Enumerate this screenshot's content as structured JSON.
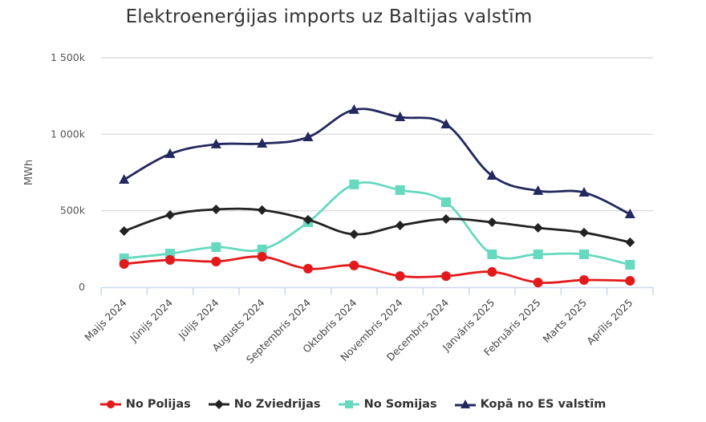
{
  "title": "Elektroenerģijas imports uz Baltijas valstīm",
  "chart_data": {
    "type": "line",
    "title": "Elektroenerģijas imports uz Baltijas valstīm",
    "xlabel": "",
    "ylabel": "MWh",
    "ylim": [
      0,
      1500000
    ],
    "yticks": [
      0,
      500000,
      1000000,
      1500000
    ],
    "ytick_labels": [
      "0",
      "500k",
      "1 000k",
      "1 500k"
    ],
    "grid": true,
    "legend_position": "bottom",
    "categories": [
      "Maijs 2024",
      "Jūnijs 2024",
      "Jūlijs 2024",
      "Augusts 2024",
      "Septembris 2024",
      "Oktobris 2024",
      "Novembris 2024",
      "Decembris 2024",
      "Janvāris 2025",
      "Februāris 2025",
      "Marts 2025",
      "Aprīlis 2025"
    ],
    "series": [
      {
        "name": "No Polijas",
        "color": "#e31a1c",
        "marker": "circle",
        "values": [
          152000,
          178000,
          168000,
          199000,
          121000,
          142000,
          73000,
          73000,
          100000,
          31000,
          47000,
          42000
        ]
      },
      {
        "name": "No Zviedrijas",
        "color": "#222222",
        "marker": "diamond",
        "values": [
          367000,
          472000,
          509000,
          504000,
          441000,
          346000,
          404000,
          446000,
          425000,
          388000,
          357000,
          294000
        ]
      },
      {
        "name": "No Somijas",
        "color": "#66d9bf",
        "marker": "square",
        "values": [
          189000,
          220000,
          262000,
          247000,
          425000,
          672000,
          635000,
          556000,
          215000,
          215000,
          215000,
          147000
        ]
      },
      {
        "name": "Kopā no ES valstīm",
        "color": "#23285e",
        "marker": "triangle",
        "values": [
          703000,
          871000,
          934000,
          939000,
          981000,
          1160000,
          1112000,
          1065000,
          729000,
          630000,
          619000,
          477000
        ]
      }
    ]
  },
  "legend": [
    {
      "label": "No Polijas"
    },
    {
      "label": "No Zviedrijas"
    },
    {
      "label": "No Somijas"
    },
    {
      "label": "Kopā no ES valstīm"
    }
  ]
}
